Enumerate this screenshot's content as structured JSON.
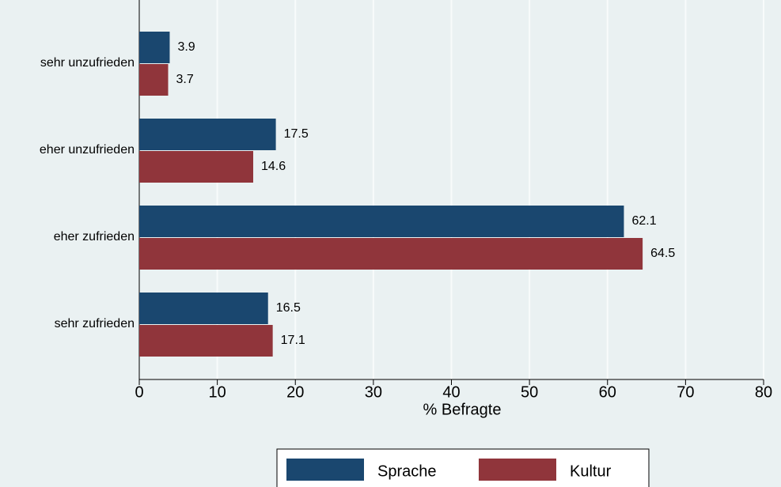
{
  "chart_data": {
    "type": "bar",
    "orientation": "horizontal",
    "categories": [
      "sehr unzufrieden",
      "eher unzufrieden",
      "eher zufrieden",
      "sehr zufrieden"
    ],
    "series": [
      {
        "name": "Sprache",
        "color": "#1a476f",
        "values": [
          3.9,
          17.5,
          62.1,
          16.5
        ]
      },
      {
        "name": "Kultur",
        "color": "#90353b",
        "values": [
          3.7,
          14.6,
          64.5,
          17.1
        ]
      }
    ],
    "xlabel": "% Befragte",
    "xlim": [
      0,
      80
    ],
    "xticks": [
      0,
      10,
      20,
      30,
      40,
      50,
      60,
      70,
      80
    ],
    "grid": true,
    "legend": "bottom"
  }
}
